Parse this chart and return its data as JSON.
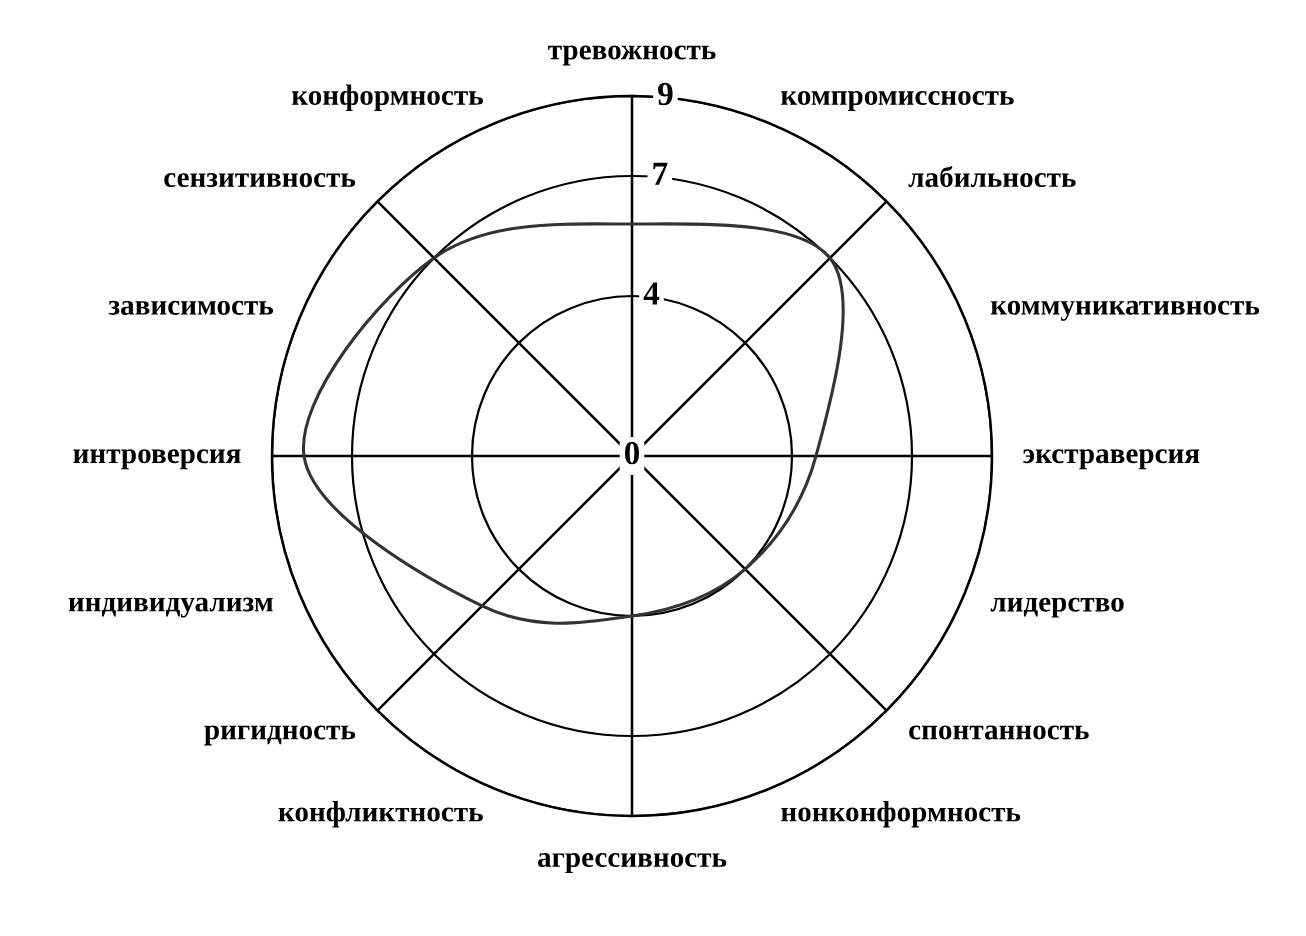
{
  "chart_data": {
    "type": "radar",
    "categories": [
      "тревожность",
      "лабильность",
      "экстраверсия",
      "спонтанность",
      "агрессивность",
      "ригидность",
      "интроверсия",
      "сензитивность"
    ],
    "series": [
      {
        "color": "#333333",
        "values": [
          5.8,
          7.0,
          4.6,
          4.0,
          4.0,
          5.3,
          8.2,
          7.0
        ]
      }
    ],
    "annotations": [
      "компромиссность",
      "коммуникативность",
      "лидерство",
      "нонконформность",
      "конфликтность",
      "индивидуализм",
      "зависимость",
      "конформность"
    ],
    "ylim": [
      0,
      9
    ],
    "yticks": [
      0,
      4,
      7,
      9
    ],
    "grid": true
  }
}
